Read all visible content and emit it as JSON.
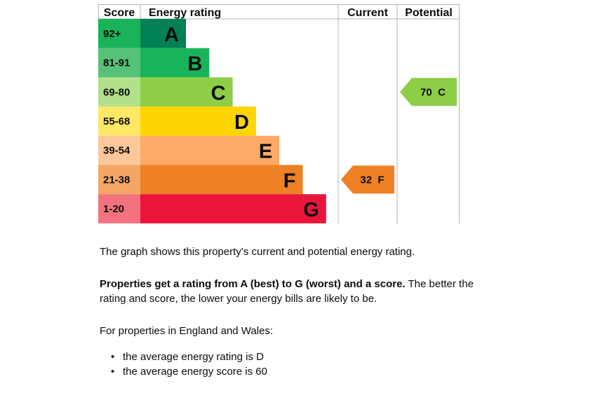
{
  "chart_data": {
    "type": "bar",
    "headers": {
      "score": "Score",
      "rating": "Energy rating",
      "current": "Current",
      "potential": "Potential"
    },
    "bands": [
      {
        "letter": "A",
        "range": "92+",
        "color": "#008054",
        "light": "#19b459"
      },
      {
        "letter": "B",
        "range": "81-91",
        "color": "#19b459",
        "light": "#57c17a"
      },
      {
        "letter": "C",
        "range": "69-80",
        "color": "#8dce46",
        "light": "#b3e08b"
      },
      {
        "letter": "D",
        "range": "55-68",
        "color": "#ffd500",
        "light": "#ffe766"
      },
      {
        "letter": "E",
        "range": "39-54",
        "color": "#fcaa65",
        "light": "#fdc79a"
      },
      {
        "letter": "F",
        "range": "21-38",
        "color": "#ef8023",
        "light": "#f4a765"
      },
      {
        "letter": "G",
        "range": "1-20",
        "color": "#e9153b",
        "light": "#f2737f"
      }
    ],
    "current": {
      "score": 32,
      "band": "F",
      "label": "32 F"
    },
    "potential": {
      "score": 70,
      "band": "C",
      "label": "70 C"
    }
  },
  "description": {
    "intro": "The graph shows this property’s current and potential energy rating.",
    "rating_bold": "Properties get a rating from A (best) to G (worst) and a score.",
    "rating_rest": " The better the rating and score, the lower your energy bills are likely to be.",
    "region_heading": "For properties in England and Wales:",
    "averages": [
      "the average energy rating is D",
      "the average energy score is 60"
    ]
  }
}
